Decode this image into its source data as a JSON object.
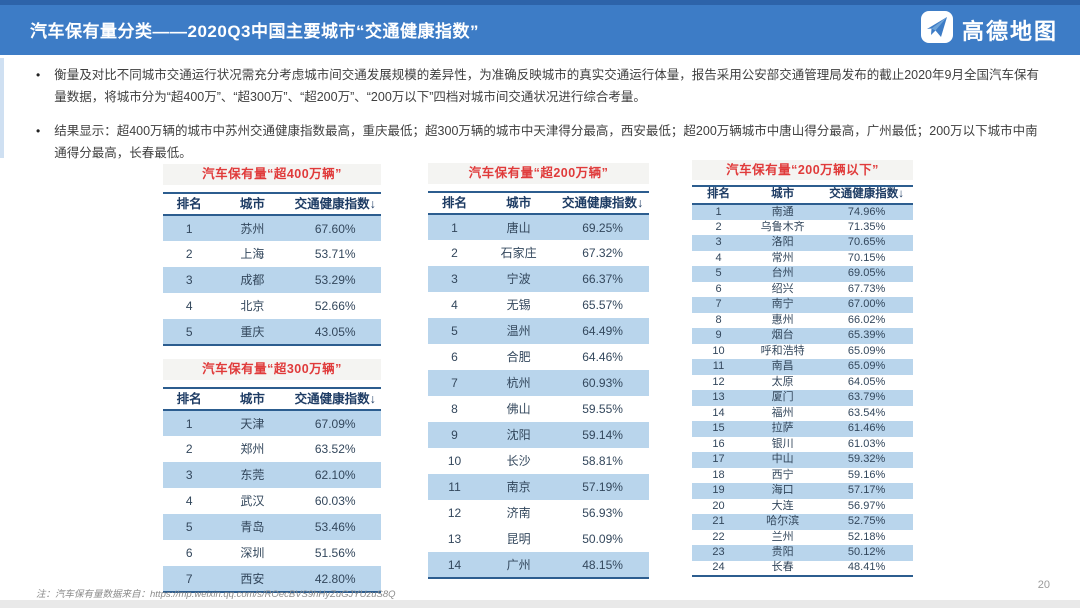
{
  "header": {
    "title": "汽车保有量分类——2020Q3中国主要城市“交通健康指数”",
    "logo_text": "高德地图",
    "logo_icon": "paper-plane-icon"
  },
  "bullets": [
    {
      "marker": "•",
      "text": "衡量及对比不同城市交通运行状况需充分考虑城市间交通发展规模的差异性，为准确反映城市的真实交通运行体量，报告采用公安部交通管理局发布的截止2020年9月全国汽车保有量数据，将城市分为“超400万”、“超300万”、“超200万”、“200万以下”四档对城市间交通状况进行综合考量。"
    },
    {
      "marker": "•",
      "text": "结果显示：超400万辆的城市中苏州交通健康指数最高，重庆最低；超300万辆的城市中天津得分最高，西安最低；超200万辆城市中唐山得分最高，广州最低；200万以下城市中南通得分最高，长春最低。"
    }
  ],
  "tables": [
    {
      "title": "汽车保有量“超400万辆”",
      "headers": [
        "排名",
        "城市",
        "交通健康指数↓"
      ],
      "rows": [
        [
          "1",
          "苏州",
          "67.60%"
        ],
        [
          "2",
          "上海",
          "53.71%"
        ],
        [
          "3",
          "成都",
          "53.29%"
        ],
        [
          "4",
          "北京",
          "52.66%"
        ],
        [
          "5",
          "重庆",
          "43.05%"
        ]
      ]
    },
    {
      "title": "汽车保有量“超300万辆”",
      "headers": [
        "排名",
        "城市",
        "交通健康指数↓"
      ],
      "rows": [
        [
          "1",
          "天津",
          "67.09%"
        ],
        [
          "2",
          "郑州",
          "63.52%"
        ],
        [
          "3",
          "东莞",
          "62.10%"
        ],
        [
          "4",
          "武汉",
          "60.03%"
        ],
        [
          "5",
          "青岛",
          "53.46%"
        ],
        [
          "6",
          "深圳",
          "51.56%"
        ],
        [
          "7",
          "西安",
          "42.80%"
        ]
      ]
    },
    {
      "title": "汽车保有量“超200万辆”",
      "headers": [
        "排名",
        "城市",
        "交通健康指数↓"
      ],
      "rows": [
        [
          "1",
          "唐山",
          "69.25%"
        ],
        [
          "2",
          "石家庄",
          "67.32%"
        ],
        [
          "3",
          "宁波",
          "66.37%"
        ],
        [
          "4",
          "无锡",
          "65.57%"
        ],
        [
          "5",
          "温州",
          "64.49%"
        ],
        [
          "6",
          "合肥",
          "64.46%"
        ],
        [
          "7",
          "杭州",
          "60.93%"
        ],
        [
          "8",
          "佛山",
          "59.55%"
        ],
        [
          "9",
          "沈阳",
          "59.14%"
        ],
        [
          "10",
          "长沙",
          "58.81%"
        ],
        [
          "11",
          "南京",
          "57.19%"
        ],
        [
          "12",
          "济南",
          "56.93%"
        ],
        [
          "13",
          "昆明",
          "50.09%"
        ],
        [
          "14",
          "广州",
          "48.15%"
        ]
      ]
    },
    {
      "title": "汽车保有量“200万辆以下”",
      "headers": [
        "排名",
        "城市",
        "交通健康指数↓"
      ],
      "rows": [
        [
          "1",
          "南通",
          "74.96%"
        ],
        [
          "2",
          "乌鲁木齐",
          "71.35%"
        ],
        [
          "3",
          "洛阳",
          "70.65%"
        ],
        [
          "4",
          "常州",
          "70.15%"
        ],
        [
          "5",
          "台州",
          "69.05%"
        ],
        [
          "6",
          "绍兴",
          "67.73%"
        ],
        [
          "7",
          "南宁",
          "67.00%"
        ],
        [
          "8",
          "惠州",
          "66.02%"
        ],
        [
          "9",
          "烟台",
          "65.39%"
        ],
        [
          "10",
          "呼和浩特",
          "65.09%"
        ],
        [
          "11",
          "南昌",
          "65.09%"
        ],
        [
          "12",
          "太原",
          "64.05%"
        ],
        [
          "13",
          "厦门",
          "63.79%"
        ],
        [
          "14",
          "福州",
          "63.54%"
        ],
        [
          "15",
          "拉萨",
          "61.46%"
        ],
        [
          "16",
          "银川",
          "61.03%"
        ],
        [
          "17",
          "中山",
          "59.32%"
        ],
        [
          "18",
          "西宁",
          "59.16%"
        ],
        [
          "19",
          "海口",
          "57.17%"
        ],
        [
          "20",
          "大连",
          "56.97%"
        ],
        [
          "21",
          "哈尔滨",
          "52.75%"
        ],
        [
          "22",
          "兰州",
          "52.18%"
        ],
        [
          "23",
          "贵阳",
          "50.12%"
        ],
        [
          "24",
          "长春",
          "48.41%"
        ]
      ]
    }
  ],
  "footer": {
    "source_note": "注：汽车保有量数据来自：https://mp.weixin.qq.com/s/ROecBVS9hHyZuGJYUzuS8Q",
    "page_number": "20"
  },
  "colors": {
    "header_bar": "#3d7cc6",
    "table_title_red": "#e03b3b",
    "row_highlight_blue": "#b9d5ec",
    "table_border_navy": "#2c5d8f"
  }
}
